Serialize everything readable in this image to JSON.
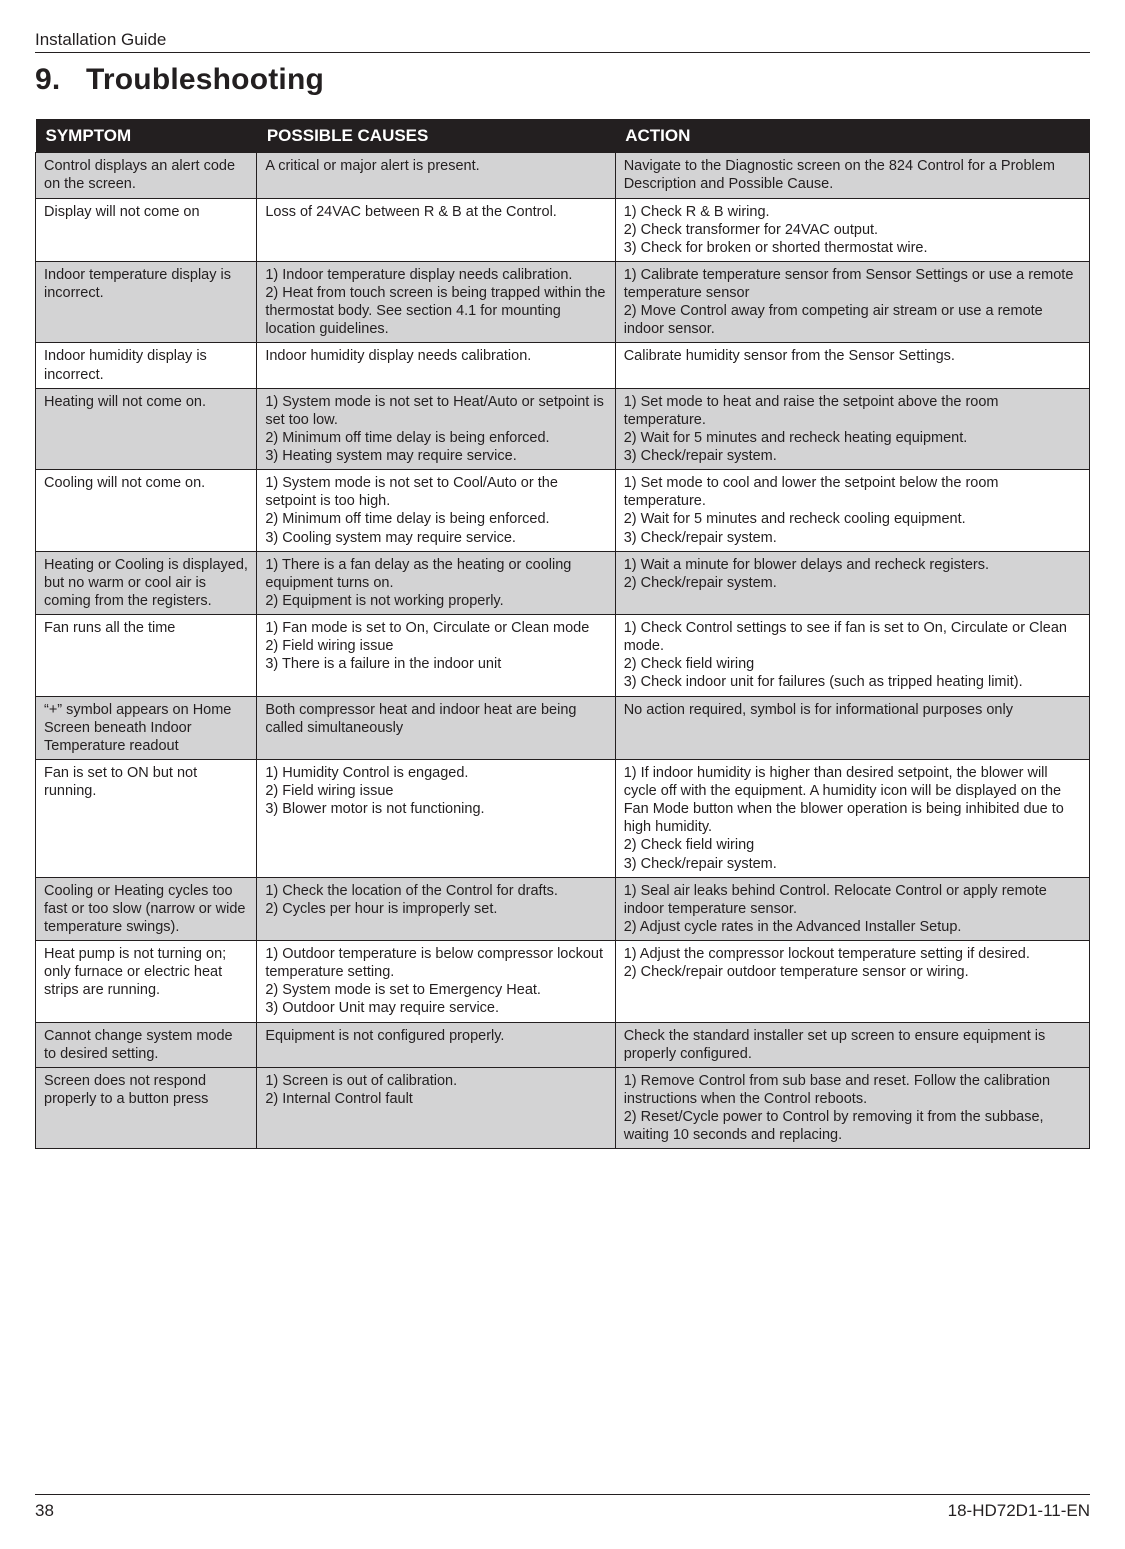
{
  "header": {
    "doc_label": "Installation Guide"
  },
  "section": {
    "number": "9.",
    "title": "Troubleshooting"
  },
  "table": {
    "columns": [
      "SYMPTOM",
      "POSSIBLE CAUSES",
      "ACTION"
    ],
    "col_widths_pct": [
      21,
      34,
      45
    ],
    "header_bg": "#231f20",
    "header_fg": "#ffffff",
    "border_color": "#231f20",
    "shaded_bg": "#d3d3d4",
    "plain_bg": "#ffffff",
    "font_size_pt": 11,
    "rows": [
      {
        "shaded": true,
        "symptom": "Control displays an alert code on the screen.",
        "cause": "A critical or major alert is present.",
        "action": "Navigate to the Diagnostic screen on the 824 Control for a Problem Description and Possible Cause."
      },
      {
        "shaded": false,
        "symptom": "Display will not come on",
        "cause": "Loss of 24VAC between R & B at the Control.",
        "action": "1) Check R & B wiring.\n2) Check transformer for 24VAC output.\n3) Check for broken or shorted thermostat wire."
      },
      {
        "shaded": true,
        "symptom": "Indoor temperature display is incorrect.",
        "cause": "1) Indoor temperature display needs calibration.\n2) Heat from touch screen is being trapped within the thermostat body. See section 4.1 for mounting location guidelines.",
        "action": "1) Calibrate temperature sensor from Sensor Settings or use a remote temperature sensor\n2) Move Control away from competing air stream or use a remote indoor sensor."
      },
      {
        "shaded": false,
        "symptom": "Indoor humidity display is incorrect.",
        "cause": "Indoor humidity display needs calibration.",
        "action": "Calibrate humidity sensor from the Sensor Settings."
      },
      {
        "shaded": true,
        "symptom": "Heating will not come on.",
        "cause": "1) System mode is not set to Heat/Auto or setpoint is set too low.\n2) Minimum off time delay is being enforced.\n3) Heating system may require service.",
        "action": "1) Set mode to heat and raise the setpoint above the room temperature.\n2) Wait for 5 minutes and recheck heating equipment.\n3) Check/repair system."
      },
      {
        "shaded": false,
        "symptom": "Cooling will not come on.",
        "cause": "1) System mode is not set to Cool/Auto or the setpoint is too high.\n2) Minimum off time delay is being enforced.\n3) Cooling system may require service.",
        "action": "1) Set mode to cool and lower the setpoint below the room temperature.\n2) Wait for 5 minutes and recheck cooling equipment.\n3) Check/repair system."
      },
      {
        "shaded": true,
        "symptom": "Heating or Cooling is displayed, but no warm or cool air is coming from the registers.",
        "cause": "1) There is a fan delay as the heating or cooling equipment turns on.\n2) Equipment is not working properly.",
        "action": "1) Wait a minute for blower delays and recheck registers.\n2) Check/repair system."
      },
      {
        "shaded": false,
        "symptom": "Fan runs all the time",
        "cause": "1) Fan mode is set to On, Circulate or Clean mode\n2) Field wiring issue\n3) There is a failure in the indoor unit",
        "action": "1) Check Control settings to see if fan is set to On, Circulate or Clean mode.\n2) Check field wiring\n3) Check indoor unit for failures (such as tripped heating limit)."
      },
      {
        "shaded": true,
        "symptom": "“+” symbol appears on Home Screen beneath Indoor Temperature readout",
        "cause": "Both compressor heat and indoor heat are being called simultaneously",
        "action": "No action required, symbol is for informational purposes only"
      },
      {
        "shaded": false,
        "symptom": "Fan is set to ON but not running.",
        "cause": "1) Humidity Control is engaged.\n2) Field wiring issue\n3) Blower motor is not functioning.",
        "action": "1) If indoor humidity is higher than desired setpoint, the blower will cycle off with the equipment. A humidity icon will be displayed on the Fan Mode button when the blower operation is being inhibited due to high humidity.\n2) Check field wiring\n3) Check/repair system."
      },
      {
        "shaded": true,
        "symptom": "Cooling or Heating cycles too fast or too slow (narrow or wide temperature swings).",
        "cause": "1) Check the location of the Control for drafts.\n2) Cycles per hour is improperly set.",
        "action": "1) Seal air leaks behind Control.  Relocate Control or apply remote indoor temperature sensor.\n2) Adjust cycle rates in the Advanced Installer Setup."
      },
      {
        "shaded": false,
        "symptom": "Heat pump is not turning on; only furnace or electric heat strips are running.",
        "cause": "1) Outdoor temperature is below compressor lockout temperature setting.\n2) System mode is set to Emergency Heat.\n3) Outdoor Unit may require service.",
        "action": "1) Adjust the compressor lockout temperature setting if desired.\n2) Check/repair outdoor temperature sensor or wiring."
      },
      {
        "shaded": true,
        "symptom": "Cannot change system mode to desired setting.",
        "cause": "Equipment is not configured properly.",
        "action": "Check the standard installer set up screen to ensure equipment is properly configured."
      },
      {
        "shaded": true,
        "symptom": "Screen does not respond properly to a button press",
        "cause": "1) Screen is out of calibration.\n2) Internal Control fault",
        "action": "1) Remove Control from sub base and reset. Follow the calibration instructions when the Control reboots.\n2) Reset/Cycle power to Control by removing it from the subbase, waiting 10 seconds and replacing."
      }
    ]
  },
  "footer": {
    "page_num": "38",
    "doc_code": "18-HD72D1-11-EN"
  }
}
